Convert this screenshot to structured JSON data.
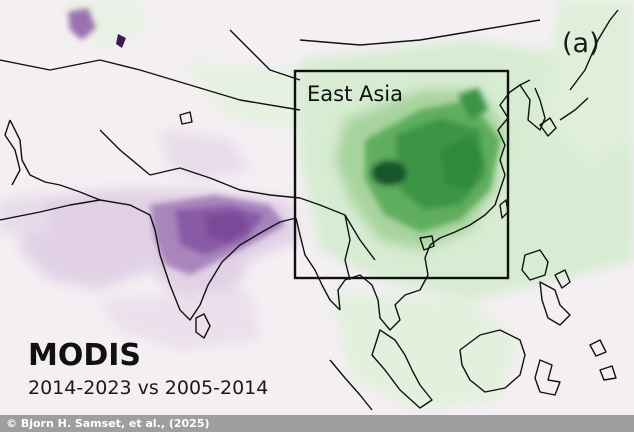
{
  "figure": {
    "panel_label": "(a)",
    "region_label": "East Asia",
    "dataset": "MODIS",
    "period": "2014-2023 vs 2005-2014",
    "credit": "© Bjorn H. Samset, et al., (2025)"
  },
  "colors": {
    "increase": "#8a5aa6",
    "decrease": "#2f8a3c",
    "neutral": "#f4eff3",
    "coastline": "#111111"
  }
}
